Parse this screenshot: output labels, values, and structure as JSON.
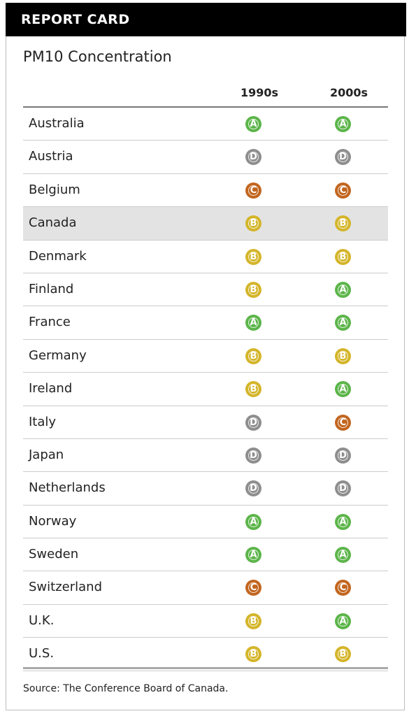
{
  "header": {
    "title": "REPORT CARD"
  },
  "chart_data": {
    "type": "table",
    "title": "PM10 Concentration",
    "columns": [
      "1990s",
      "2000s"
    ],
    "highlight_row": "Canada",
    "rows": [
      {
        "country": "Australia",
        "grades": [
          "A",
          "A"
        ]
      },
      {
        "country": "Austria",
        "grades": [
          "D",
          "D"
        ]
      },
      {
        "country": "Belgium",
        "grades": [
          "C",
          "C"
        ]
      },
      {
        "country": "Canada",
        "grades": [
          "B",
          "B"
        ]
      },
      {
        "country": "Denmark",
        "grades": [
          "B",
          "B"
        ]
      },
      {
        "country": "Finland",
        "grades": [
          "B",
          "A"
        ]
      },
      {
        "country": "France",
        "grades": [
          "A",
          "A"
        ]
      },
      {
        "country": "Germany",
        "grades": [
          "B",
          "B"
        ]
      },
      {
        "country": "Ireland",
        "grades": [
          "B",
          "A"
        ]
      },
      {
        "country": "Italy",
        "grades": [
          "D",
          "C"
        ]
      },
      {
        "country": "Japan",
        "grades": [
          "D",
          "D"
        ]
      },
      {
        "country": "Netherlands",
        "grades": [
          "D",
          "D"
        ]
      },
      {
        "country": "Norway",
        "grades": [
          "A",
          "A"
        ]
      },
      {
        "country": "Sweden",
        "grades": [
          "A",
          "A"
        ]
      },
      {
        "country": "Switzerland",
        "grades": [
          "C",
          "C"
        ]
      },
      {
        "country": "U.K.",
        "grades": [
          "B",
          "A"
        ]
      },
      {
        "country": "U.S.",
        "grades": [
          "B",
          "B"
        ]
      }
    ],
    "grade_colors": {
      "A": "#5cb54a",
      "B": "#d4b52a",
      "C": "#c2661f",
      "D": "#8e8e8e"
    }
  },
  "footer": {
    "source": "Source: The Conference Board of Canada."
  }
}
